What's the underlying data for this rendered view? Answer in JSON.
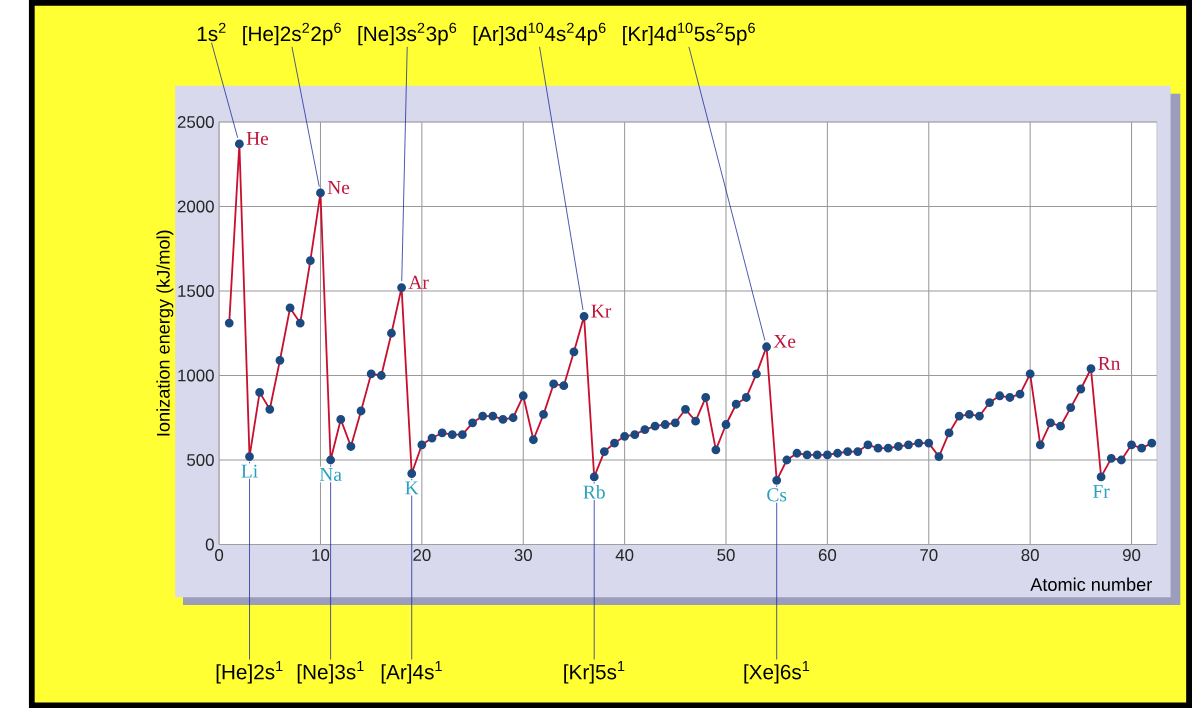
{
  "chart_data": {
    "type": "line",
    "xlabel": "Atomic number",
    "ylabel": "Ionization energy (kJ/mol)",
    "x": [
      1,
      2,
      3,
      4,
      5,
      6,
      7,
      8,
      9,
      10,
      11,
      12,
      13,
      14,
      15,
      16,
      17,
      18,
      19,
      20,
      21,
      22,
      23,
      24,
      25,
      26,
      27,
      28,
      29,
      30,
      31,
      32,
      33,
      34,
      35,
      36,
      37,
      38,
      39,
      40,
      41,
      42,
      43,
      44,
      45,
      46,
      47,
      48,
      49,
      50,
      51,
      52,
      53,
      54,
      55,
      56,
      57,
      58,
      59,
      60,
      61,
      62,
      63,
      64,
      65,
      66,
      67,
      68,
      69,
      70,
      71,
      72,
      73,
      74,
      75,
      76,
      77,
      78,
      79,
      80,
      81,
      82,
      83,
      84,
      85,
      86,
      87,
      88,
      89,
      90,
      91,
      92
    ],
    "series": [
      {
        "color": "#c8102e",
        "values": [
          1310,
          2370,
          520,
          900,
          800,
          1090,
          1400,
          1310,
          1680,
          2080,
          500,
          740,
          580,
          790,
          1010,
          1000,
          1250,
          1520,
          420,
          590,
          630,
          660,
          650,
          650,
          720,
          760,
          760,
          740,
          750,
          880,
          620,
          770,
          950,
          940,
          1140,
          1350,
          400,
          550,
          600,
          640,
          650,
          680,
          700,
          710,
          720,
          800,
          730,
          870,
          560,
          710,
          830,
          870,
          1010,
          1170,
          380,
          500,
          540,
          530,
          530,
          530,
          540,
          550,
          550,
          590,
          570,
          570,
          580,
          590,
          600,
          600,
          520,
          660,
          760,
          770,
          760,
          840,
          880,
          870,
          890,
          1010,
          590,
          720,
          700,
          810,
          920,
          1040,
          400,
          510,
          500,
          590,
          570,
          600
        ]
      }
    ],
    "xlim": [
      0,
      92.5
    ],
    "ylim": [
      0,
      2500
    ],
    "xticks": [
      0,
      10,
      20,
      30,
      40,
      50,
      60,
      70,
      80,
      90
    ],
    "yticks": [
      0,
      500,
      1000,
      1500,
      2000,
      2500
    ],
    "grid": true,
    "marker": "circle",
    "line_style": "solid",
    "annotations": [
      {
        "text": "He",
        "x": 2,
        "y": 2370
      },
      {
        "text": "1s$^{2}$",
        "x": 2,
        "y": 2370
      },
      {
        "text": "Ne",
        "x": 10,
        "y": 2080
      },
      {
        "text": "[He]2s$^{2}$2p$^{6}$",
        "x": 10,
        "y": 2080
      },
      {
        "text": "Ar",
        "x": 18,
        "y": 1520
      },
      {
        "text": "[Ne]3s$^{2}$3p$^{6}$",
        "x": 18,
        "y": 1520
      },
      {
        "text": "Kr",
        "x": 36,
        "y": 1350
      },
      {
        "text": "[Ar]3d$^{10}$4s$^{2}$4p$^{6}$",
        "x": 36,
        "y": 1350
      },
      {
        "text": "Xe",
        "x": 54,
        "y": 1170
      },
      {
        "text": "[Kr]4d$^{10}$5s$^{2}$5p$^{6}$",
        "x": 54,
        "y": 1170
      },
      {
        "text": "Rn",
        "x": 86,
        "y": 1040
      },
      {
        "text": "Li",
        "x": 3,
        "y": 520
      },
      {
        "text": "[He]2s$^{1}$",
        "x": 3,
        "y": 520
      },
      {
        "text": "Na",
        "x": 11,
        "y": 500
      },
      {
        "text": "[Ne]3s$^{1}$",
        "x": 11,
        "y": 500
      },
      {
        "text": "K",
        "x": 19,
        "y": 420
      },
      {
        "text": "[Ar]4s$^{1}$",
        "x": 19,
        "y": 420
      },
      {
        "text": "Rb",
        "x": 37,
        "y": 400
      },
      {
        "text": "[Kr]5s$^{1}$",
        "x": 37,
        "y": 400
      },
      {
        "text": "Cs",
        "x": 55,
        "y": 380
      },
      {
        "text": "[Xe]6s$^{1}$",
        "x": 55,
        "y": 380
      },
      {
        "text": "Fr",
        "x": 87,
        "y": 400
      }
    ]
  }
}
